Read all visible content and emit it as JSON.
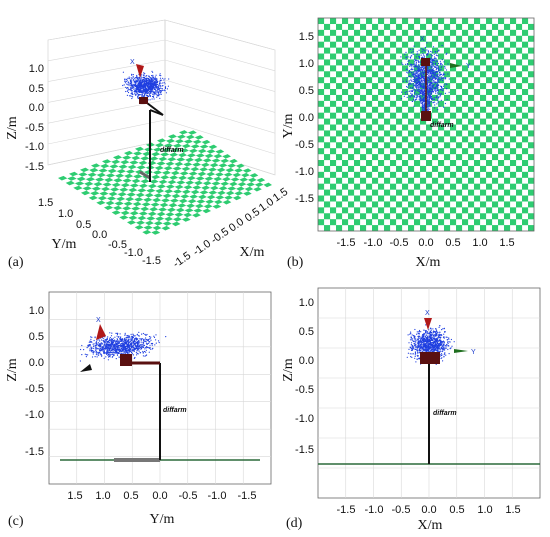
{
  "panels": [
    {
      "id": "a",
      "label": "(a)",
      "view": "3d",
      "axes": {
        "x": "X/m",
        "y": "Y/m",
        "z": "Z/m"
      },
      "z_ticks": [
        "1.0",
        "0.5",
        "0.0",
        "-0.5",
        "-1.0",
        "-1.5"
      ],
      "y_ticks": [
        "1.5",
        "1.0",
        "0.5",
        "0.0",
        "-0.5",
        "-1.0",
        "-1.5"
      ],
      "x_ticks": [
        "-1.5",
        "-1.0",
        "-0.5",
        "0.0",
        "0.5",
        "1.0",
        "1.5"
      ],
      "robot_label": "diffarm",
      "axis_marks": [
        "X"
      ]
    },
    {
      "id": "b",
      "label": "(b)",
      "view": "top",
      "axes": {
        "x": "X/m",
        "y": "Y/m"
      },
      "x_ticks": [
        "-1.5",
        "-1.0",
        "-0.5",
        "0.0",
        "0.5",
        "1.0",
        "1.5"
      ],
      "y_ticks": [
        "1.5",
        "1.0",
        "0.5",
        "0.0",
        "-0.5",
        "-1.0",
        "-1.5"
      ],
      "robot_label": "diffarm",
      "axis_marks": [
        "X",
        "Y"
      ]
    },
    {
      "id": "c",
      "label": "(c)",
      "view": "side",
      "axes": {
        "x": "Y/m",
        "y": "Z/m"
      },
      "x_ticks": [
        "1.5",
        "1.0",
        "0.5",
        "0.0",
        "-0.5",
        "-1.0",
        "-1.5"
      ],
      "y_ticks": [
        "1.0",
        "0.5",
        "0.0",
        "-0.5",
        "-1.0",
        "-1.5"
      ],
      "robot_label": "diffarm",
      "axis_marks": [
        "X"
      ]
    },
    {
      "id": "d",
      "label": "(d)",
      "view": "front",
      "axes": {
        "x": "X/m",
        "y": "Z/m"
      },
      "x_ticks": [
        "-1.5",
        "-1.0",
        "-0.5",
        "0.0",
        "0.5",
        "1.0",
        "1.5"
      ],
      "y_ticks": [
        "1.0",
        "0.5",
        "0.0",
        "-0.5",
        "-1.0",
        "-1.5"
      ],
      "robot_label": "diffarm",
      "axis_marks": [
        "X",
        "Y"
      ]
    }
  ],
  "colors": {
    "checker_a": "#2ecc71",
    "checker_b": "#ffffff",
    "point_cloud": "#1f3fe0",
    "robot_link": "#111111",
    "end_effector": "#5a1010",
    "axis_x": "#b01818",
    "axis_y": "#1e6e1e",
    "axis_z": "#1a3acc"
  }
}
